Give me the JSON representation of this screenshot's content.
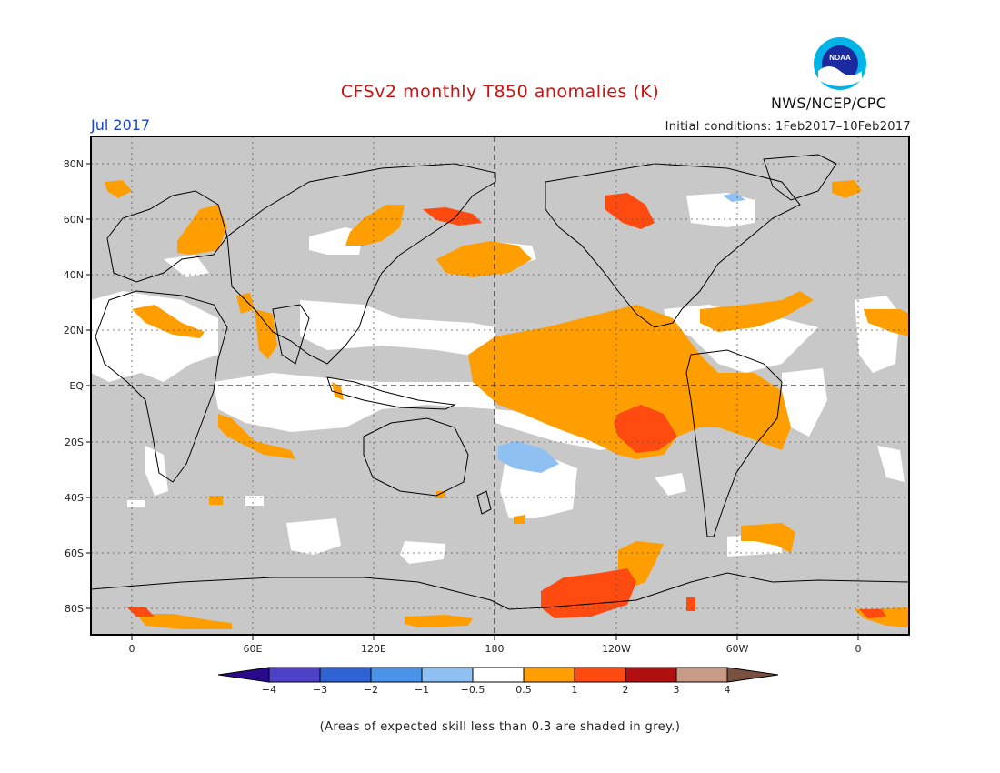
{
  "title": "CFSv2 monthly T850 anomalies (K)",
  "period": "Jul 2017",
  "initial_conditions": "Initial conditions: 1Feb2017–10Feb2017",
  "agency": "NWS/NCEP/CPC",
  "logo_text": "NOAA",
  "colors": {
    "title": "#cc1111",
    "period": "#1a44cc",
    "grey_mask": "#c8c8c8",
    "land_outline": "#000000"
  },
  "map": {
    "lat_labels": [
      "80N",
      "60N",
      "40N",
      "20N",
      "EQ",
      "20S",
      "40S",
      "60S",
      "80S"
    ],
    "lon_labels": [
      "0",
      "60E",
      "120E",
      "180",
      "120W",
      "60W",
      "0"
    ]
  },
  "colorbar": {
    "ticks": [
      "−4",
      "−3",
      "−2",
      "−1",
      "−0.5",
      "0.5",
      "1",
      "2",
      "3",
      "4"
    ],
    "colors": [
      "#2a0a8c",
      "#4f40c8",
      "#2f62d2",
      "#4a93e8",
      "#8ec0f2",
      "#ffffff",
      "#ff9e00",
      "#ff4a10",
      "#b01010",
      "#c89a88",
      "#7a5040"
    ]
  },
  "note": "(Areas of expected skill less than 0.3 are shaded in grey.)"
}
